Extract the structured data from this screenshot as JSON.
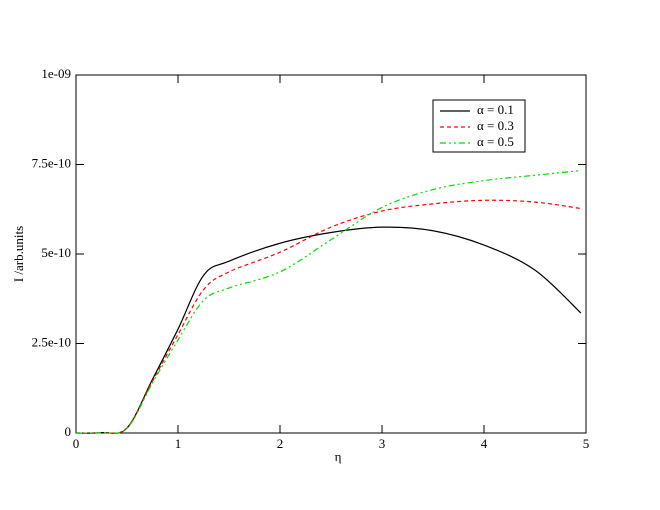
{
  "chart_data": {
    "type": "line",
    "xlabel": "η",
    "ylabel": "I /arb.units",
    "x": [
      0,
      0.25,
      0.5,
      0.75,
      1,
      1.25,
      1.5,
      2,
      2.5,
      3,
      3.5,
      4,
      4.5,
      4.95
    ],
    "series": [
      {
        "name": "α = 0.1",
        "color": "#000000",
        "dash": "none",
        "values": [
          0,
          1e-12,
          1.4e-11,
          1.5e-10,
          2.9e-10,
          4.4e-10,
          4.8e-10,
          5.3e-10,
          5.6e-10,
          5.75e-10,
          5.65e-10,
          5.25e-10,
          4.55e-10,
          3.35e-10
        ]
      },
      {
        "name": "α = 0.3",
        "color": "#ff0000",
        "dash": "4 3",
        "values": [
          0,
          1e-12,
          1.4e-11,
          1.45e-10,
          2.75e-10,
          4e-10,
          4.5e-10,
          5.05e-10,
          5.75e-10,
          6.2e-10,
          6.4e-10,
          6.5e-10,
          6.45e-10,
          6.27e-10
        ]
      },
      {
        "name": "α = 0.5",
        "color": "#00dd00",
        "dash": "6 3 2 3 2 3",
        "values": [
          0,
          1e-12,
          1.3e-11,
          1.4e-10,
          2.6e-10,
          3.7e-10,
          4.05e-10,
          4.5e-10,
          5.4e-10,
          6.3e-10,
          6.8e-10,
          7.05e-10,
          7.2e-10,
          7.33e-10
        ]
      }
    ],
    "xlim": [
      0,
      5
    ],
    "xticks": [
      0,
      1,
      2,
      3,
      4,
      5
    ],
    "ylim": [
      0,
      1e-09
    ],
    "yticks": [
      0,
      {
        "value": 2.5e-10,
        "label": "2.5e-10"
      },
      {
        "value": 5e-10,
        "label": "5e-10"
      },
      {
        "value": 7.5e-10,
        "label": "7.5e-10"
      },
      {
        "value": 1e-09,
        "label": "1e-09"
      }
    ]
  }
}
